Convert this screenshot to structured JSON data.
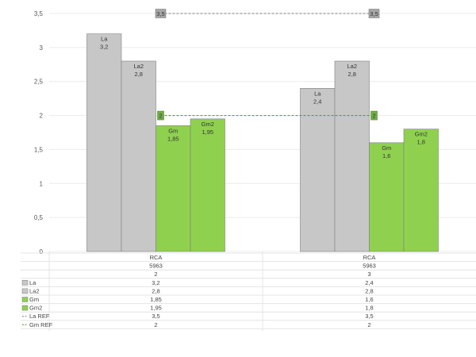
{
  "chart_data": {
    "type": "bar",
    "ylim": [
      0,
      3.5
    ],
    "yticks": [
      "0",
      "0,5",
      "1",
      "1,5",
      "2",
      "2,5",
      "3",
      "3,5"
    ],
    "groups": [
      {
        "row1": "RCA",
        "row2": "5963",
        "row3": "2"
      },
      {
        "row1": "RCA",
        "row2": "5963",
        "row3": "3"
      }
    ],
    "series": [
      {
        "name": "La",
        "color": "#c7c7c7",
        "values": [
          3.2,
          2.4
        ],
        "labels": [
          "3,2",
          "2,4"
        ]
      },
      {
        "name": "La2",
        "color": "#c7c7c7",
        "values": [
          2.8,
          2.8
        ],
        "labels": [
          "2,8",
          "2,8"
        ]
      },
      {
        "name": "Gm",
        "color": "#8fd14f",
        "values": [
          1.85,
          1.6
        ],
        "labels": [
          "1,85",
          "1,6"
        ]
      },
      {
        "name": "Gm2",
        "color": "#8fd14f",
        "values": [
          1.95,
          1.8
        ],
        "labels": [
          "1,95",
          "1,8"
        ]
      }
    ],
    "reference_lines": [
      {
        "name": "La REF",
        "color": "#a6a6a6",
        "value": 3.5,
        "label": "3,5",
        "values": [
          "3,5",
          "3,5"
        ]
      },
      {
        "name": "Gm REF",
        "color": "#70ad47",
        "value": 2,
        "label": "2",
        "values": [
          "2",
          "2"
        ]
      }
    ]
  }
}
